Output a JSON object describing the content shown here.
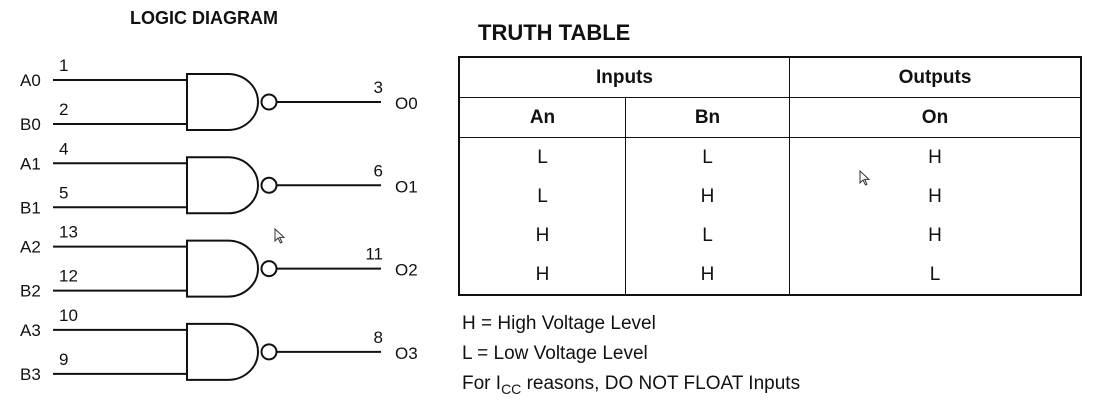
{
  "logic_diagram": {
    "title": "LOGIC DIAGRAM",
    "gate_type": "NAND",
    "gates": [
      {
        "a_label": "A0",
        "a_pin": "1",
        "b_label": "B0",
        "b_pin": "2",
        "out_label": "O0",
        "out_pin": "3"
      },
      {
        "a_label": "A1",
        "a_pin": "4",
        "b_label": "B1",
        "b_pin": "5",
        "out_label": "O1",
        "out_pin": "6"
      },
      {
        "a_label": "A2",
        "a_pin": "13",
        "b_label": "B2",
        "b_pin": "12",
        "out_label": "O2",
        "out_pin": "11"
      },
      {
        "a_label": "A3",
        "a_pin": "10",
        "b_label": "B3",
        "b_pin": "9",
        "out_label": "O3",
        "out_pin": "8"
      }
    ]
  },
  "truth_table": {
    "title": "TRUTH TABLE",
    "group_headers": [
      "Inputs",
      "Outputs"
    ],
    "columns": [
      "An",
      "Bn",
      "On"
    ],
    "rows": [
      [
        "L",
        "L",
        "H"
      ],
      [
        "L",
        "H",
        "H"
      ],
      [
        "H",
        "L",
        "H"
      ],
      [
        "H",
        "H",
        "L"
      ]
    ]
  },
  "notes": {
    "line1": "H = High Voltage Level",
    "line2": "L = Low Voltage Level",
    "line3_pre": "For I",
    "line3_sub": "CC",
    "line3_post": " reasons, DO NOT FLOAT Inputs"
  }
}
